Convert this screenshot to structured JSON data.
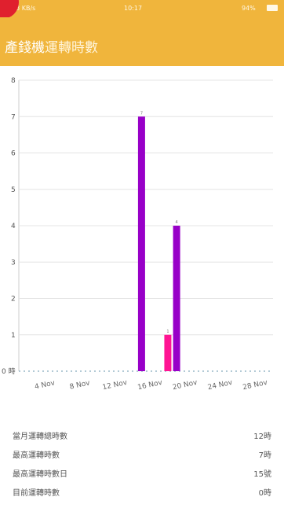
{
  "status_bar": {
    "network": "..il 3 KB/s",
    "time": "10:17",
    "battery": "94%"
  },
  "app_bar": {
    "title_part1": "產錢機",
    "title_part2": "運轉時數"
  },
  "chart_data": {
    "type": "bar",
    "y_ticks": [
      "0 時",
      "1",
      "2",
      "3",
      "4",
      "5",
      "6",
      "7",
      "8"
    ],
    "ylim": [
      0,
      8
    ],
    "x_ticks": [
      "4 Nov",
      "8 Nov",
      "12 Nov",
      "16 Nov",
      "20 Nov",
      "24 Nov",
      "28 Nov"
    ],
    "bars": [
      {
        "day": 15,
        "value": 7,
        "label": "7",
        "color": "#9800c8"
      },
      {
        "day": 18,
        "value": 1,
        "label": "1",
        "color": "#ff1493"
      },
      {
        "day": 19,
        "value": 4,
        "label": "4",
        "color": "#9800c8"
      }
    ],
    "x_range_days": [
      1,
      30
    ],
    "grid": true
  },
  "stats": [
    {
      "label": "當月運轉總時數",
      "value": "12時"
    },
    {
      "label": "最高運轉時數",
      "value": "7時"
    },
    {
      "label": "最高運轉時數日",
      "value": "15號"
    },
    {
      "label": "目前運轉時數",
      "value": "0時"
    }
  ],
  "colors": {
    "accent": "#f0b53c",
    "bar_primary": "#9800c8",
    "bar_secondary": "#ff1493"
  }
}
